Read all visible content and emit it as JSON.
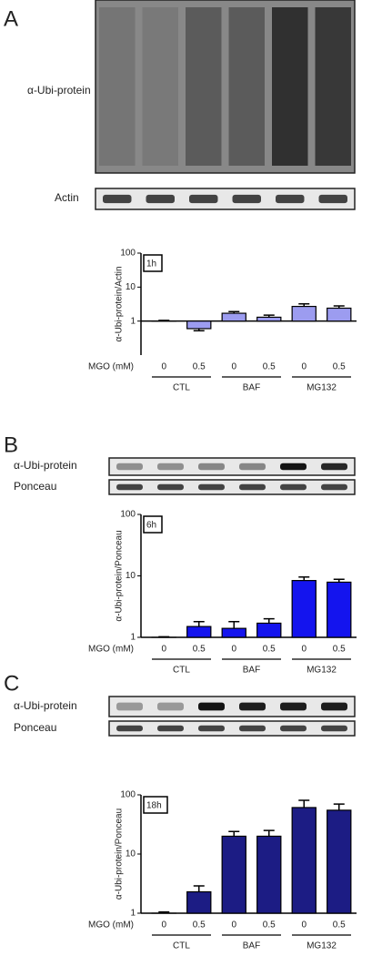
{
  "chart_data": [
    {
      "type": "bar",
      "panel": "A",
      "blot_labels": [
        "α-Ubi-protein",
        "Actin"
      ],
      "time_label": "1h",
      "ylabel": "α-Ubi-protein/Actin",
      "xlabel": "MGO (mM)",
      "categories": [
        "0",
        "0.5",
        "0",
        "0.5",
        "0",
        "0.5"
      ],
      "groups": [
        "CTL",
        "BAF",
        "MG132"
      ],
      "values": [
        1.0,
        0.6,
        1.7,
        1.3,
        2.7,
        2.4
      ],
      "errors": [
        0.05,
        0.08,
        0.2,
        0.2,
        0.5,
        0.4
      ],
      "color": "#9c9cf0",
      "ylim": [
        0.1,
        100
      ],
      "yticks": [
        1,
        10,
        100
      ],
      "log_scale": true
    },
    {
      "type": "bar",
      "panel": "B",
      "blot_labels": [
        "α-Ubi-protein",
        "Ponceau"
      ],
      "time_label": "6h",
      "ylabel": "α-Ubi-protein/Ponceau",
      "xlabel": "MGO (mM)",
      "categories": [
        "0",
        "0.5",
        "0",
        "0.5",
        "0",
        "0.5"
      ],
      "groups": [
        "CTL",
        "BAF",
        "MG132"
      ],
      "values": [
        1.0,
        1.5,
        1.4,
        1.7,
        8.4,
        7.9
      ],
      "errors": [
        0.02,
        0.3,
        0.4,
        0.3,
        1.2,
        0.9
      ],
      "color": "#1414ee",
      "ylim": [
        1,
        100
      ],
      "yticks": [
        1,
        10,
        100
      ],
      "log_scale": true
    },
    {
      "type": "bar",
      "panel": "C",
      "blot_labels": [
        "α-Ubi-protein",
        "Ponceau"
      ],
      "time_label": "18h",
      "ylabel": "α-Ubi-protein/Ponceau",
      "xlabel": "MGO (mM)",
      "categories": [
        "0",
        "0.5",
        "0",
        "0.5",
        "0",
        "0.5"
      ],
      "groups": [
        "CTL",
        "BAF",
        "MG132"
      ],
      "values": [
        1.0,
        2.3,
        20,
        20,
        61,
        55
      ],
      "errors": [
        0.05,
        0.6,
        4,
        5,
        20,
        15
      ],
      "color": "#1c1c84",
      "ylim": [
        1,
        100
      ],
      "yticks": [
        1,
        10,
        100
      ],
      "log_scale": true
    }
  ]
}
